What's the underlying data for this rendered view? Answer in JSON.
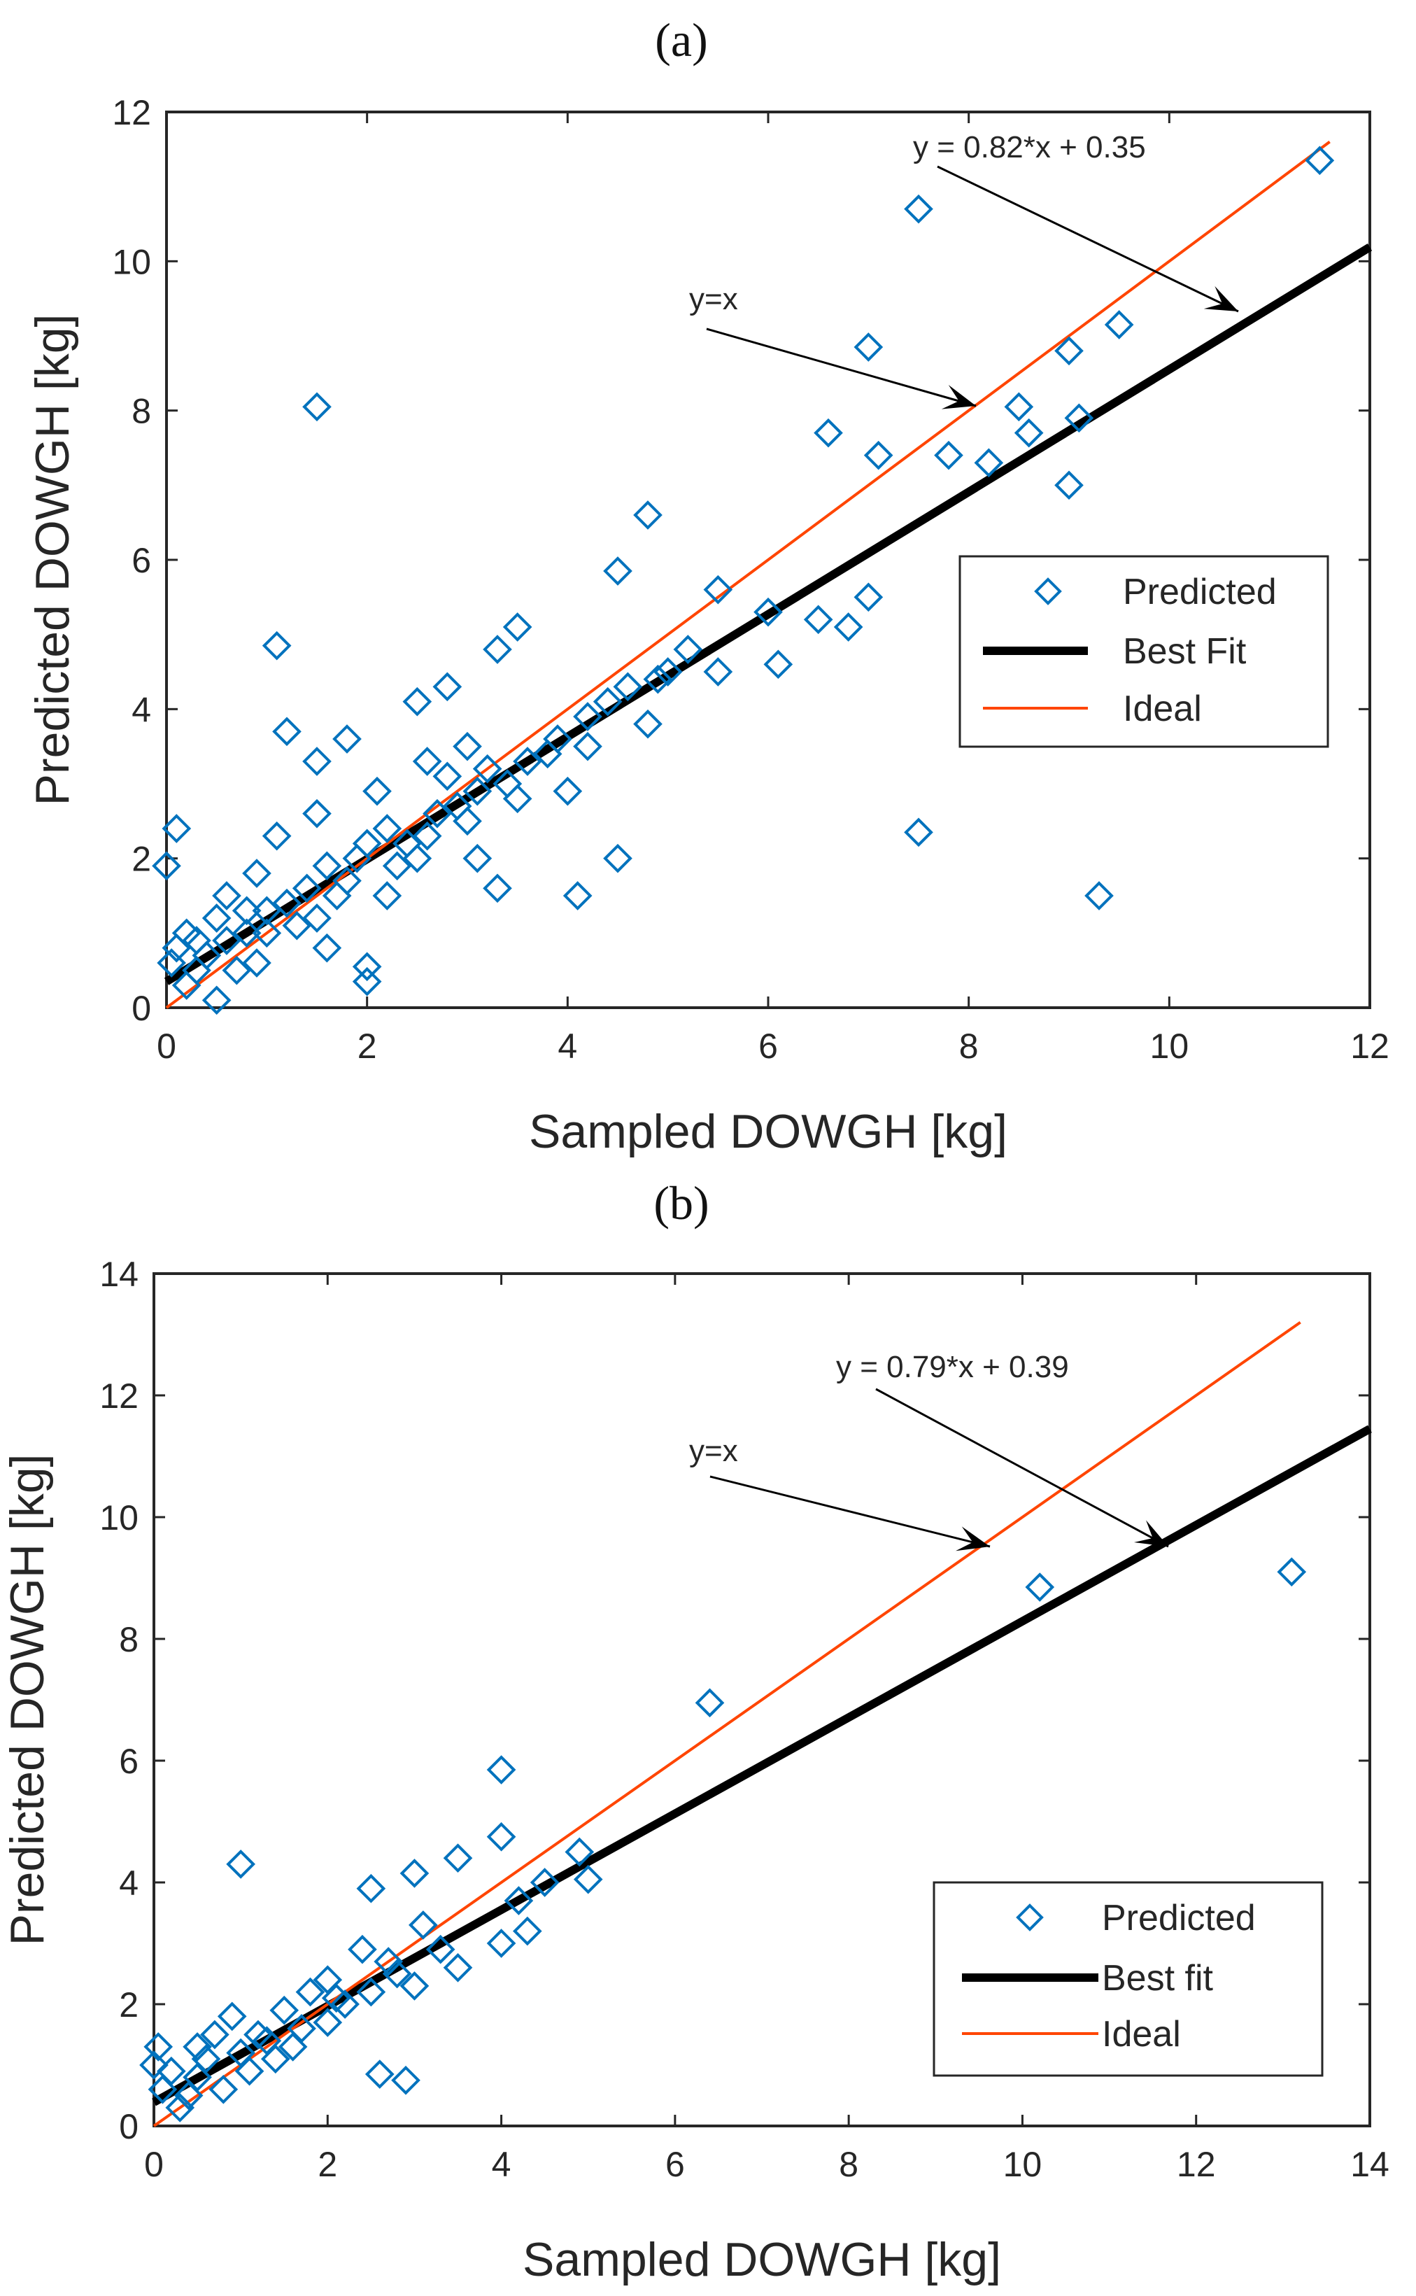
{
  "colors": {
    "points": "#0072BD",
    "ideal": "#FF4500",
    "bestfit": "#000000",
    "axes": "#262626",
    "annotation": "#000000"
  },
  "chart_data": [
    {
      "type": "scatter",
      "panel_label": "(a)",
      "xlabel": "Sampled DOWGH [kg]",
      "ylabel": "Predicted DOWGH [kg]",
      "xlim": [
        0,
        12
      ],
      "ylim": [
        0,
        12
      ],
      "xticks": [
        "0",
        "2",
        "4",
        "6",
        "8",
        "10",
        "12"
      ],
      "yticks": [
        "0",
        "2",
        "4",
        "6",
        "8",
        "10",
        "12"
      ],
      "ideal_x_range": [
        0,
        11.6
      ],
      "fit_x_range": [
        0,
        12
      ],
      "fit": {
        "slope": 0.82,
        "intercept": 0.35
      },
      "equation_label": "y = 0.82*x + 0.35",
      "ideal_label": "y=x",
      "legend": [
        "Predicted",
        "Best Fit",
        "Ideal"
      ],
      "legend_position": "right-middle",
      "points": [
        [
          0.0,
          1.9
        ],
        [
          0.1,
          2.4
        ],
        [
          0.05,
          0.6
        ],
        [
          0.1,
          0.8
        ],
        [
          0.2,
          0.3
        ],
        [
          0.3,
          0.9
        ],
        [
          0.5,
          0.1
        ],
        [
          0.5,
          1.2
        ],
        [
          0.6,
          1.5
        ],
        [
          0.7,
          0.5
        ],
        [
          0.8,
          1.3
        ],
        [
          0.9,
          1.8
        ],
        [
          1.0,
          1.0
        ],
        [
          1.1,
          2.3
        ],
        [
          1.2,
          3.7
        ],
        [
          1.1,
          4.85
        ],
        [
          1.5,
          2.6
        ],
        [
          1.5,
          3.3
        ],
        [
          1.5,
          8.05
        ],
        [
          1.6,
          0.8
        ],
        [
          1.8,
          1.7
        ],
        [
          1.8,
          3.6
        ],
        [
          2.0,
          0.35
        ],
        [
          2.0,
          0.55
        ],
        [
          2.0,
          2.2
        ],
        [
          2.1,
          2.9
        ],
        [
          2.2,
          1.5
        ],
        [
          2.4,
          2.2
        ],
        [
          2.5,
          4.1
        ],
        [
          2.6,
          2.3
        ],
        [
          2.8,
          3.1
        ],
        [
          2.8,
          4.3
        ],
        [
          3.0,
          2.5
        ],
        [
          3.0,
          3.5
        ],
        [
          3.1,
          2.0
        ],
        [
          3.3,
          1.6
        ],
        [
          3.3,
          4.8
        ],
        [
          3.5,
          2.8
        ],
        [
          3.5,
          5.1
        ],
        [
          3.8,
          3.4
        ],
        [
          4.0,
          2.9
        ],
        [
          4.1,
          1.5
        ],
        [
          4.2,
          3.5
        ],
        [
          4.5,
          2.0
        ],
        [
          4.5,
          5.85
        ],
        [
          4.8,
          3.8
        ],
        [
          4.8,
          6.6
        ],
        [
          5.0,
          4.5
        ],
        [
          5.5,
          4.5
        ],
        [
          5.5,
          5.6
        ],
        [
          6.0,
          5.3
        ],
        [
          6.1,
          4.6
        ],
        [
          6.5,
          5.2
        ],
        [
          6.6,
          7.7
        ],
        [
          6.8,
          5.1
        ],
        [
          7.0,
          5.5
        ],
        [
          7.0,
          8.85
        ],
        [
          7.1,
          7.4
        ],
        [
          7.5,
          2.35
        ],
        [
          7.5,
          10.7
        ],
        [
          7.8,
          7.4
        ],
        [
          8.2,
          7.3
        ],
        [
          8.5,
          8.05
        ],
        [
          8.6,
          7.7
        ],
        [
          9.0,
          7.0
        ],
        [
          9.0,
          8.8
        ],
        [
          9.1,
          7.9
        ],
        [
          9.3,
          1.5
        ],
        [
          9.5,
          9.15
        ],
        [
          11.5,
          11.35
        ],
        [
          0.3,
          0.5
        ],
        [
          0.4,
          0.7
        ],
        [
          0.6,
          0.9
        ],
        [
          0.8,
          1.0
        ],
        [
          1.0,
          1.3
        ],
        [
          1.2,
          1.4
        ],
        [
          1.3,
          1.1
        ],
        [
          1.4,
          1.6
        ],
        [
          1.6,
          1.9
        ],
        [
          1.7,
          1.5
        ],
        [
          1.9,
          2.0
        ],
        [
          2.2,
          2.4
        ],
        [
          2.3,
          1.9
        ],
        [
          2.5,
          2.0
        ],
        [
          2.7,
          2.6
        ],
        [
          2.9,
          2.7
        ],
        [
          3.1,
          2.9
        ],
        [
          3.2,
          3.2
        ],
        [
          3.4,
          3.0
        ],
        [
          3.6,
          3.3
        ],
        [
          3.9,
          3.6
        ],
        [
          4.2,
          3.9
        ],
        [
          4.4,
          4.1
        ],
        [
          4.6,
          4.3
        ],
        [
          4.9,
          4.4
        ],
        [
          5.2,
          4.8
        ],
        [
          0.2,
          1.0
        ],
        [
          0.9,
          0.6
        ],
        [
          1.5,
          1.2
        ],
        [
          2.6,
          3.3
        ]
      ]
    },
    {
      "type": "scatter",
      "panel_label": "(b)",
      "xlabel": "Sampled DOWGH [kg]",
      "ylabel": "Predicted DOWGH [kg]",
      "xlim": [
        0,
        14
      ],
      "ylim": [
        0,
        14
      ],
      "xticks": [
        "0",
        "2",
        "4",
        "6",
        "8",
        "10",
        "12",
        "14"
      ],
      "yticks": [
        "0",
        "2",
        "4",
        "6",
        "8",
        "10",
        "12",
        "14"
      ],
      "ideal_x_range": [
        0,
        13.2
      ],
      "fit_x_range": [
        0,
        14
      ],
      "fit": {
        "slope": 0.79,
        "intercept": 0.39
      },
      "equation_label": "y = 0.79*x + 0.39",
      "ideal_label": "y=x",
      "legend": [
        "Predicted",
        "Best fit",
        "Ideal"
      ],
      "legend_position": "bottom-right",
      "points": [
        [
          0.0,
          1.0
        ],
        [
          0.05,
          1.3
        ],
        [
          0.1,
          0.6
        ],
        [
          0.2,
          0.9
        ],
        [
          0.3,
          0.3
        ],
        [
          0.5,
          0.8
        ],
        [
          0.5,
          1.3
        ],
        [
          0.7,
          1.5
        ],
        [
          0.8,
          0.6
        ],
        [
          0.9,
          1.8
        ],
        [
          1.0,
          1.2
        ],
        [
          1.0,
          4.3
        ],
        [
          1.1,
          0.9
        ],
        [
          1.2,
          1.5
        ],
        [
          1.4,
          1.1
        ],
        [
          1.5,
          1.9
        ],
        [
          1.7,
          1.6
        ],
        [
          1.8,
          2.2
        ],
        [
          2.0,
          1.7
        ],
        [
          2.0,
          2.4
        ],
        [
          2.2,
          2.0
        ],
        [
          2.4,
          2.9
        ],
        [
          2.5,
          2.2
        ],
        [
          2.5,
          3.9
        ],
        [
          2.6,
          0.85
        ],
        [
          2.8,
          2.5
        ],
        [
          2.9,
          0.75
        ],
        [
          3.0,
          2.3
        ],
        [
          3.0,
          4.15
        ],
        [
          3.1,
          3.3
        ],
        [
          3.3,
          2.9
        ],
        [
          3.5,
          2.6
        ],
        [
          3.5,
          4.4
        ],
        [
          4.0,
          3.0
        ],
        [
          4.0,
          4.75
        ],
        [
          4.0,
          5.85
        ],
        [
          4.2,
          3.7
        ],
        [
          4.3,
          3.2
        ],
        [
          4.5,
          4.0
        ],
        [
          4.9,
          4.5
        ],
        [
          5.0,
          4.05
        ],
        [
          6.4,
          6.95
        ],
        [
          10.2,
          8.85
        ],
        [
          13.1,
          9.1
        ],
        [
          0.4,
          0.5
        ],
        [
          0.6,
          1.1
        ],
        [
          1.3,
          1.4
        ],
        [
          1.6,
          1.3
        ],
        [
          2.1,
          2.1
        ],
        [
          2.7,
          2.7
        ]
      ]
    }
  ]
}
